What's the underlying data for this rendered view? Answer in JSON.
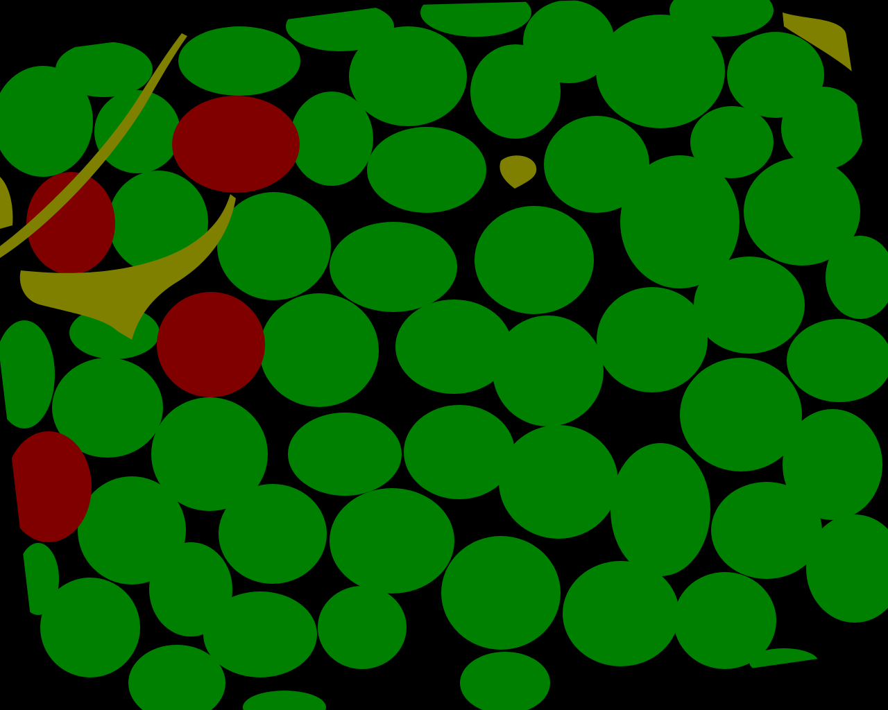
{
  "image": {
    "kind": "segmentation-mask",
    "description_classes": [
      {
        "name": "cell",
        "color": "#008000"
      },
      {
        "name": "abnormal-cell",
        "color": "#800000"
      },
      {
        "name": "fiber-debris",
        "color": "#808000"
      },
      {
        "name": "background",
        "color": "#000000"
      }
    ]
  },
  "colors": {
    "background": "#000000",
    "cell": "#008000",
    "abnormal_cell": "#800000",
    "debris": "#808000"
  }
}
